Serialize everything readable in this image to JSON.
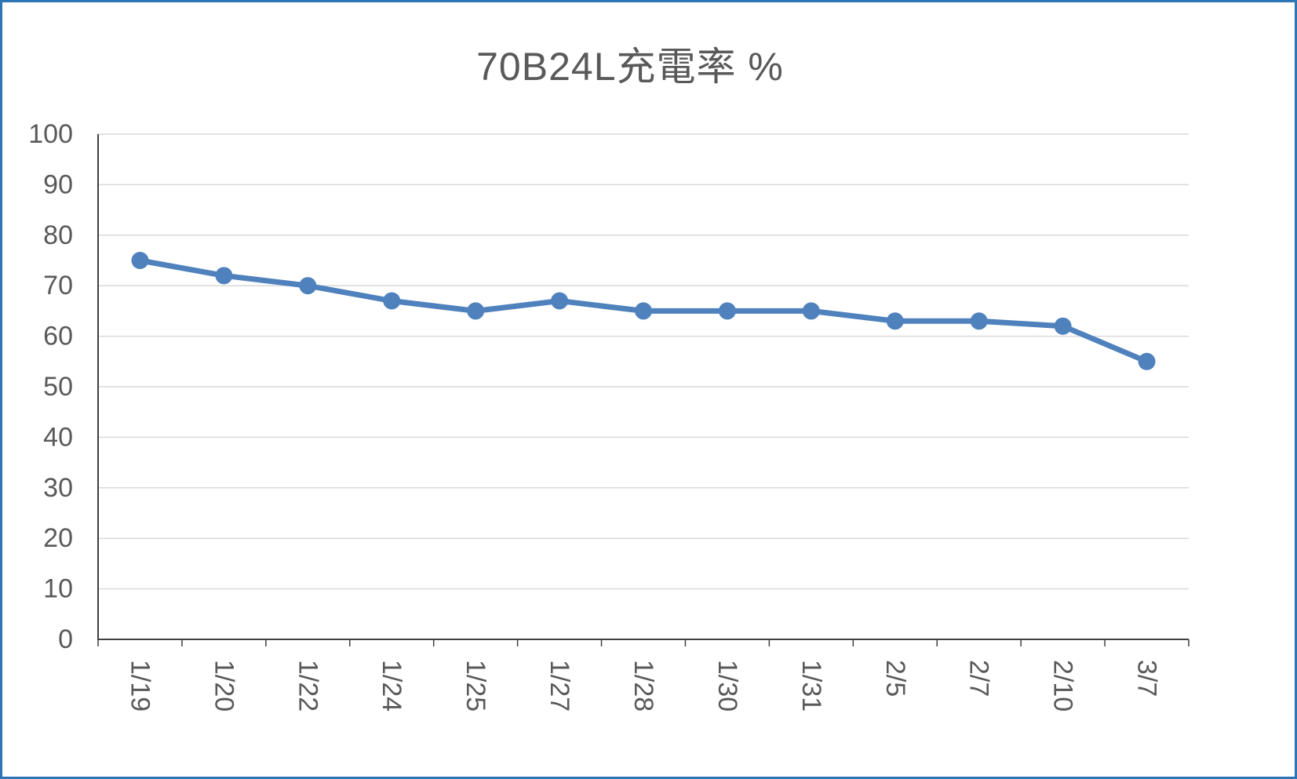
{
  "window": {
    "background": "#ffffff",
    "border_color": "#2E75B6"
  },
  "chart_data": {
    "type": "line",
    "title": "70B24L充電率 %",
    "categories": [
      "1/19",
      "1/20",
      "1/22",
      "1/24",
      "1/25",
      "1/27",
      "1/28",
      "1/30",
      "1/31",
      "2/5",
      "2/7",
      "2/10",
      "3/7"
    ],
    "series": [
      {
        "values": [
          75,
          72,
          70,
          67,
          65,
          67,
          65,
          65,
          65,
          63,
          63,
          62,
          55
        ]
      }
    ],
    "xlabel": "",
    "ylabel": "",
    "ylim": [
      0,
      100
    ],
    "ytick_step": 10,
    "ytick_labels": [
      "0",
      "10",
      "20",
      "30",
      "40",
      "50",
      "60",
      "70",
      "80",
      "90",
      "100"
    ],
    "grid": "horizontal",
    "legend": "none",
    "marker": "circle",
    "x_label_rotation": 90,
    "line_color": "#4F81BD",
    "marker_color": "#4F81BD",
    "gridline_color": "#D9D9D9",
    "axis_color": "#404040",
    "label_color": "#595959",
    "title_color": "#595959"
  }
}
